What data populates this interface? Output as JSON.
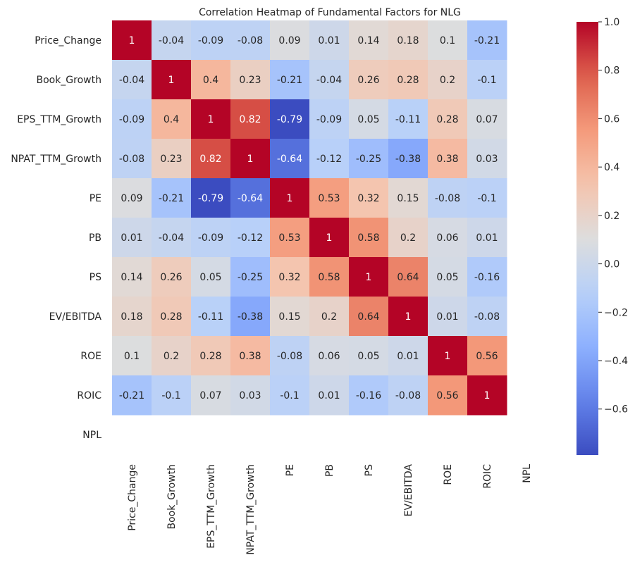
{
  "chart_data": {
    "type": "heatmap",
    "title": "Correlation Heatmap of Fundamental Factors for NLG",
    "xlabel": "",
    "ylabel": "",
    "colormap": "coolwarm",
    "labels": [
      "Price_Change",
      "Book_Growth",
      "EPS_TTM_Growth",
      "NPAT_TTM_Growth",
      "PE",
      "PB",
      "PS",
      "EV/EBITDA",
      "ROE",
      "ROIC",
      "NPL"
    ],
    "matrix": [
      [
        1,
        -0.04,
        -0.09,
        -0.08,
        0.09,
        0.01,
        0.14,
        0.18,
        0.1,
        -0.21,
        null
      ],
      [
        -0.04,
        1,
        0.4,
        0.23,
        -0.21,
        -0.04,
        0.26,
        0.28,
        0.2,
        -0.1,
        null
      ],
      [
        -0.09,
        0.4,
        1,
        0.82,
        -0.79,
        -0.09,
        0.05,
        -0.11,
        0.28,
        0.07,
        null
      ],
      [
        -0.08,
        0.23,
        0.82,
        1,
        -0.64,
        -0.12,
        -0.25,
        -0.38,
        0.38,
        0.03,
        null
      ],
      [
        0.09,
        -0.21,
        -0.79,
        -0.64,
        1,
        0.53,
        0.32,
        0.15,
        -0.08,
        -0.1,
        null
      ],
      [
        0.01,
        -0.04,
        -0.09,
        -0.12,
        0.53,
        1,
        0.58,
        0.2,
        0.06,
        0.01,
        null
      ],
      [
        0.14,
        0.26,
        0.05,
        -0.25,
        0.32,
        0.58,
        1,
        0.64,
        0.05,
        -0.16,
        null
      ],
      [
        0.18,
        0.28,
        -0.11,
        -0.38,
        0.15,
        0.2,
        0.64,
        1,
        0.01,
        -0.08,
        null
      ],
      [
        0.1,
        0.2,
        0.28,
        0.38,
        -0.08,
        0.06,
        0.05,
        0.01,
        1,
        0.56,
        null
      ],
      [
        -0.21,
        -0.1,
        0.07,
        0.03,
        -0.1,
        0.01,
        -0.16,
        -0.08,
        0.56,
        1,
        null
      ],
      [
        null,
        null,
        null,
        null,
        null,
        null,
        null,
        null,
        null,
        null,
        null
      ]
    ],
    "vmin": -0.79,
    "vmax": 1.0,
    "colorbar": {
      "ticks": [
        1.0,
        0.8,
        0.6,
        0.4,
        0.2,
        0.0,
        -0.2,
        -0.4,
        -0.6
      ],
      "tick_labels": [
        "1.0",
        "0.8",
        "0.6",
        "0.4",
        "0.2",
        "0.0",
        "−0.2",
        "−0.4",
        "−0.6"
      ]
    }
  }
}
